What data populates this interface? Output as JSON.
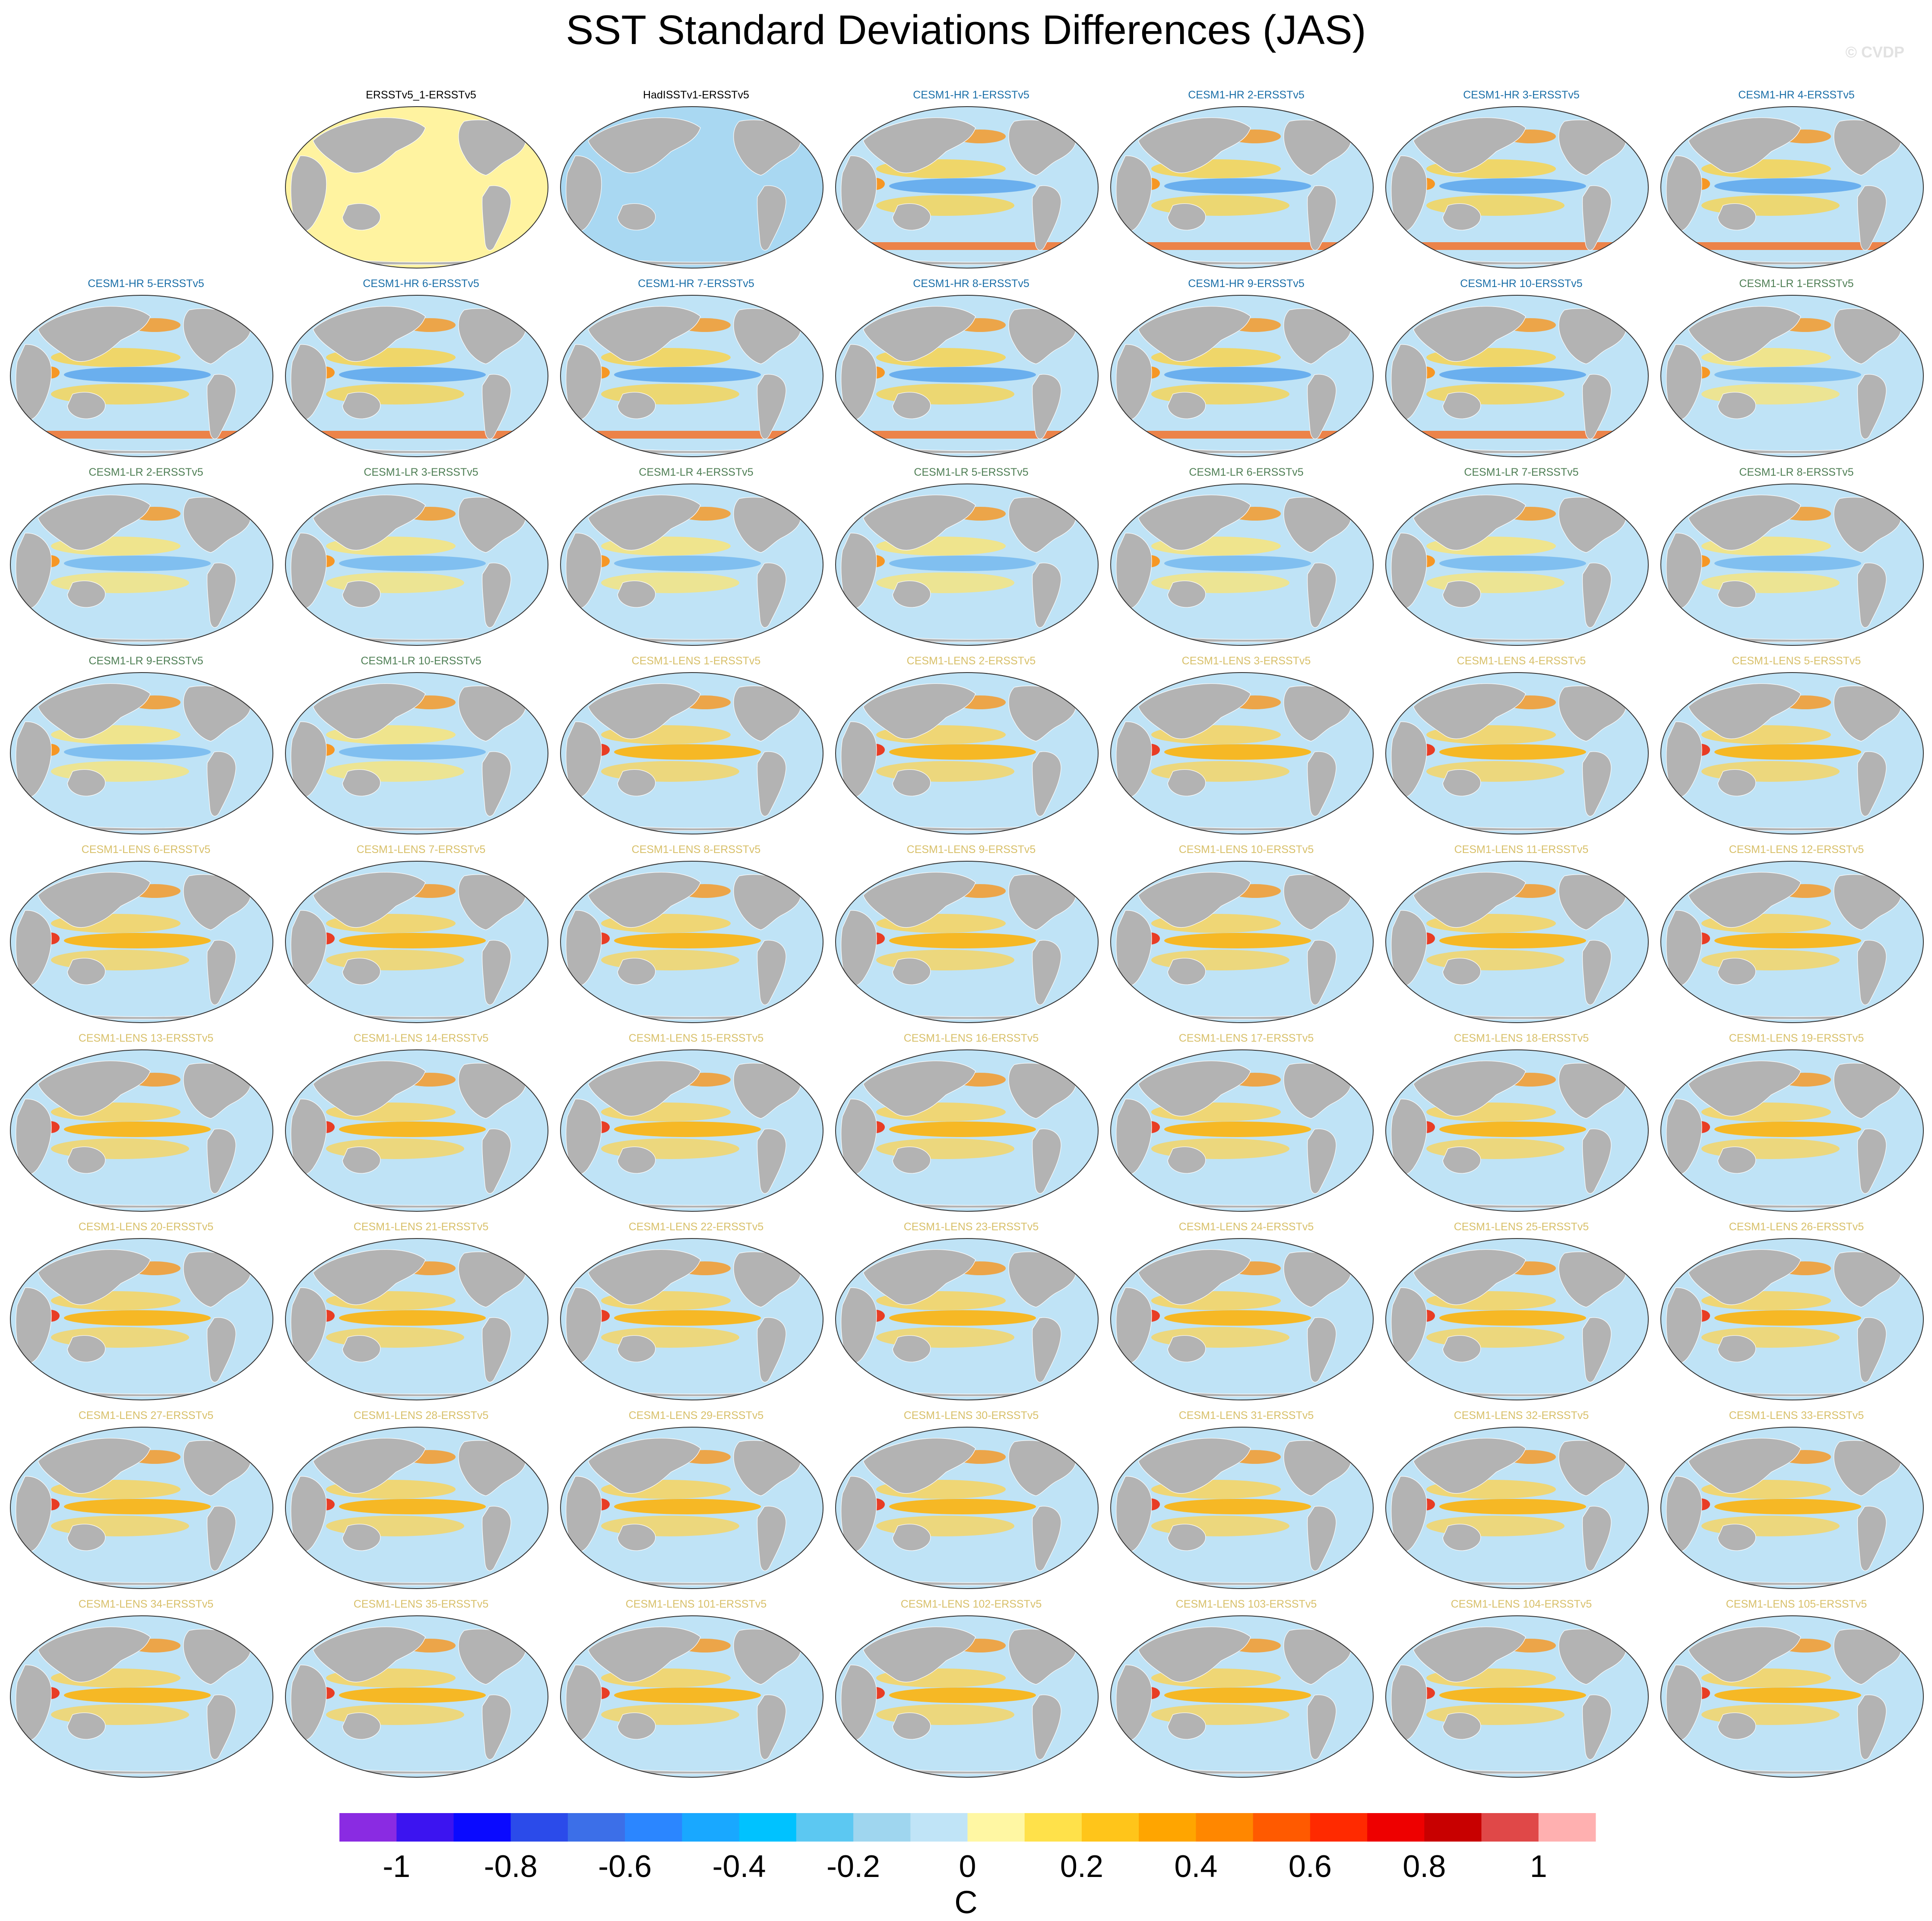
{
  "title": "SST Standard Deviations Differences (JAS)",
  "watermark": "© CVDP",
  "units": "C",
  "colors": {
    "land": "#b3b3b3",
    "ocean_base": "#bfe3f6",
    "title_obs": "#000000",
    "title_hr": "#1b6fa8",
    "title_lr": "#4f7f55",
    "title_lens": "#d8c06a"
  },
  "chart_data": {
    "type": "heatmap",
    "description_type": "small-multiples map grid",
    "colorbar": {
      "levels": [
        -1.1,
        -1.0,
        -0.9,
        -0.8,
        -0.7,
        -0.6,
        -0.5,
        -0.4,
        -0.3,
        -0.2,
        -0.1,
        0,
        0.1,
        0.2,
        0.3,
        0.4,
        0.5,
        0.6,
        0.7,
        0.8,
        0.9,
        1.0,
        1.1
      ],
      "colors": [
        "#8a2be2",
        "#3c14f0",
        "#0a0aff",
        "#2b4bea",
        "#3c6fe8",
        "#2b86ff",
        "#19a8ff",
        "#00c2ff",
        "#5cc8f2",
        "#9fd6ef",
        "#c0e4f7",
        "#fff7a3",
        "#ffe14a",
        "#ffc51a",
        "#ffa500",
        "#ff8700",
        "#ff5a00",
        "#ff2a00",
        "#ee0000",
        "#c80000",
        "#e04848",
        "#ffb0b0"
      ],
      "tick_values": [
        -1,
        -0.8,
        -0.6,
        -0.4,
        -0.2,
        0,
        0.2,
        0.4,
        0.6,
        0.8,
        1
      ],
      "tick_labels": [
        "-1",
        "-0.8",
        "-0.6",
        "-0.4",
        "-0.2",
        "0",
        "0.2",
        "0.4",
        "0.6",
        "0.8",
        "1"
      ],
      "label": "C"
    },
    "panels": [
      {
        "title": "ERSSTv5_1-ERSSTv5",
        "group": "obs"
      },
      {
        "title": "HadISSTv1-ERSSTv5",
        "group": "obs"
      },
      {
        "title": "CESM1-HR 1-ERSSTv5",
        "group": "hr"
      },
      {
        "title": "CESM1-HR 2-ERSSTv5",
        "group": "hr"
      },
      {
        "title": "CESM1-HR 3-ERSSTv5",
        "group": "hr"
      },
      {
        "title": "CESM1-HR 4-ERSSTv5",
        "group": "hr"
      },
      {
        "title": "CESM1-HR 5-ERSSTv5",
        "group": "hr"
      },
      {
        "title": "CESM1-HR 6-ERSSTv5",
        "group": "hr"
      },
      {
        "title": "CESM1-HR 7-ERSSTv5",
        "group": "hr"
      },
      {
        "title": "CESM1-HR 8-ERSSTv5",
        "group": "hr"
      },
      {
        "title": "CESM1-HR 9-ERSSTv5",
        "group": "hr"
      },
      {
        "title": "CESM1-HR 10-ERSSTv5",
        "group": "hr"
      },
      {
        "title": "CESM1-LR 1-ERSSTv5",
        "group": "lr"
      },
      {
        "title": "CESM1-LR 2-ERSSTv5",
        "group": "lr"
      },
      {
        "title": "CESM1-LR 3-ERSSTv5",
        "group": "lr"
      },
      {
        "title": "CESM1-LR 4-ERSSTv5",
        "group": "lr"
      },
      {
        "title": "CESM1-LR 5-ERSSTv5",
        "group": "lr"
      },
      {
        "title": "CESM1-LR 6-ERSSTv5",
        "group": "lr"
      },
      {
        "title": "CESM1-LR 7-ERSSTv5",
        "group": "lr"
      },
      {
        "title": "CESM1-LR 8-ERSSTv5",
        "group": "lr"
      },
      {
        "title": "CESM1-LR 9-ERSSTv5",
        "group": "lr"
      },
      {
        "title": "CESM1-LR 10-ERSSTv5",
        "group": "lr"
      },
      {
        "title": "CESM1-LENS 1-ERSSTv5",
        "group": "lens"
      },
      {
        "title": "CESM1-LENS 2-ERSSTv5",
        "group": "lens"
      },
      {
        "title": "CESM1-LENS 3-ERSSTv5",
        "group": "lens"
      },
      {
        "title": "CESM1-LENS 4-ERSSTv5",
        "group": "lens"
      },
      {
        "title": "CESM1-LENS 5-ERSSTv5",
        "group": "lens"
      },
      {
        "title": "CESM1-LENS 6-ERSSTv5",
        "group": "lens"
      },
      {
        "title": "CESM1-LENS 7-ERSSTv5",
        "group": "lens"
      },
      {
        "title": "CESM1-LENS 8-ERSSTv5",
        "group": "lens"
      },
      {
        "title": "CESM1-LENS 9-ERSSTv5",
        "group": "lens"
      },
      {
        "title": "CESM1-LENS 10-ERSSTv5",
        "group": "lens"
      },
      {
        "title": "CESM1-LENS 11-ERSSTv5",
        "group": "lens"
      },
      {
        "title": "CESM1-LENS 12-ERSSTv5",
        "group": "lens"
      },
      {
        "title": "CESM1-LENS 13-ERSSTv5",
        "group": "lens"
      },
      {
        "title": "CESM1-LENS 14-ERSSTv5",
        "group": "lens"
      },
      {
        "title": "CESM1-LENS 15-ERSSTv5",
        "group": "lens"
      },
      {
        "title": "CESM1-LENS 16-ERSSTv5",
        "group": "lens"
      },
      {
        "title": "CESM1-LENS 17-ERSSTv5",
        "group": "lens"
      },
      {
        "title": "CESM1-LENS 18-ERSSTv5",
        "group": "lens"
      },
      {
        "title": "CESM1-LENS 19-ERSSTv5",
        "group": "lens"
      },
      {
        "title": "CESM1-LENS 20-ERSSTv5",
        "group": "lens"
      },
      {
        "title": "CESM1-LENS 21-ERSSTv5",
        "group": "lens"
      },
      {
        "title": "CESM1-LENS 22-ERSSTv5",
        "group": "lens"
      },
      {
        "title": "CESM1-LENS 23-ERSSTv5",
        "group": "lens"
      },
      {
        "title": "CESM1-LENS 24-ERSSTv5",
        "group": "lens"
      },
      {
        "title": "CESM1-LENS 25-ERSSTv5",
        "group": "lens"
      },
      {
        "title": "CESM1-LENS 26-ERSSTv5",
        "group": "lens"
      },
      {
        "title": "CESM1-LENS 27-ERSSTv5",
        "group": "lens"
      },
      {
        "title": "CESM1-LENS 28-ERSSTv5",
        "group": "lens"
      },
      {
        "title": "CESM1-LENS 29-ERSSTv5",
        "group": "lens"
      },
      {
        "title": "CESM1-LENS 30-ERSSTv5",
        "group": "lens"
      },
      {
        "title": "CESM1-LENS 31-ERSSTv5",
        "group": "lens"
      },
      {
        "title": "CESM1-LENS 32-ERSSTv5",
        "group": "lens"
      },
      {
        "title": "CESM1-LENS 33-ERSSTv5",
        "group": "lens"
      },
      {
        "title": "CESM1-LENS 34-ERSSTv5",
        "group": "lens"
      },
      {
        "title": "CESM1-LENS 35-ERSSTv5",
        "group": "lens"
      },
      {
        "title": "CESM1-LENS 101-ERSSTv5",
        "group": "lens"
      },
      {
        "title": "CESM1-LENS 102-ERSSTv5",
        "group": "lens"
      },
      {
        "title": "CESM1-LENS 103-ERSSTv5",
        "group": "lens"
      },
      {
        "title": "CESM1-LENS 104-ERSSTv5",
        "group": "lens"
      },
      {
        "title": "CESM1-LENS 105-ERSSTv5",
        "group": "lens"
      }
    ]
  }
}
